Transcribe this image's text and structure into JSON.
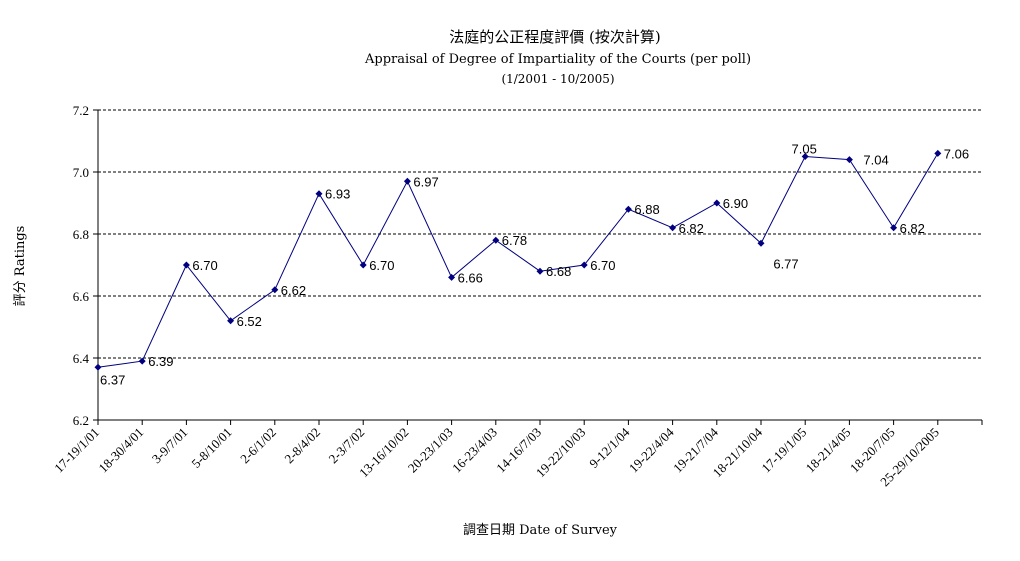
{
  "chart_data": {
    "type": "line",
    "title": "法庭的公正程度評價 (按次計算)",
    "subtitle": "Appraisal of Degree of Impartiality of the Courts (per poll)",
    "subtitle2": "(1/2001 - 10/2005)",
    "xlabel": "調查日期 Date of Survey",
    "ylabel": "評分 Ratings",
    "ylim": [
      6.2,
      7.2
    ],
    "yticks": [
      "6.2",
      "6.4",
      "6.6",
      "6.8",
      "7.0",
      "7.2"
    ],
    "grid": true,
    "legend": "none",
    "categories": [
      "17-19/1/01",
      "18-30/4/01",
      "3-9/7/01",
      "5-8/10/01",
      "2-6/1/02",
      "2-8/4/02",
      "2-3/7/02",
      "13-16/10/02",
      "20-23/1/03",
      "16-23/4/03",
      "14-16/7/03",
      "19-22/10/03",
      "9-12/1/04",
      "19-22/4/04",
      "19-21/7/04",
      "18-21/10/04",
      "17-19/1/05",
      "18-21/4/05",
      "18-20/7/05",
      "25-29/10/2005"
    ],
    "values": [
      6.37,
      6.39,
      6.7,
      6.52,
      6.62,
      6.93,
      6.7,
      6.97,
      6.66,
      6.78,
      6.68,
      6.7,
      6.88,
      6.82,
      6.9,
      6.77,
      7.05,
      7.04,
      6.82,
      7.06
    ],
    "labels": [
      "6.37",
      "6.39",
      "6.70",
      "6.52",
      "6.62",
      "6.93",
      "6.70",
      "6.97",
      "6.66",
      "6.78",
      "6.68",
      "6.70",
      "6.88",
      "6.82",
      "6.90",
      "6.77",
      "7.05",
      "7.04",
      "6.82",
      "7.06"
    ],
    "series_color": "#000080"
  }
}
